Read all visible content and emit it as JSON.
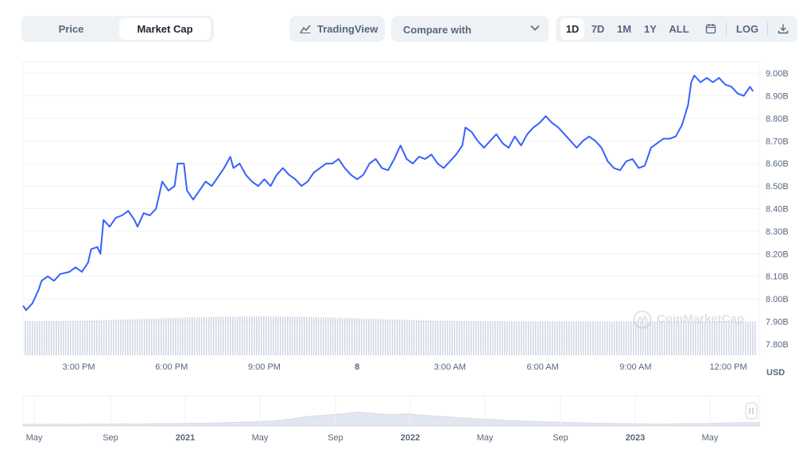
{
  "toolbar": {
    "price_label": "Price",
    "market_cap_label": "Market Cap",
    "active_tab": "Market Cap",
    "tradingview_label": "TradingView",
    "compare_label": "Compare with",
    "ranges": [
      "1D",
      "7D",
      "1M",
      "1Y",
      "ALL"
    ],
    "active_range": "1D",
    "log_label": "LOG"
  },
  "currency_label": "USD",
  "watermark": "CoinMarketCap",
  "colors": {
    "line": "#3861fb",
    "volume": "#cfd6e4",
    "grid": "#eff2f5",
    "navigator": "#e2e6ee"
  },
  "chart_data": {
    "type": "line",
    "title": "",
    "ylabel": "",
    "xlabel": "",
    "ylim": [
      7.75,
      9.05
    ],
    "y_ticks": [
      "9.00B",
      "8.90B",
      "8.80B",
      "8.70B",
      "8.60B",
      "8.50B",
      "8.40B",
      "8.30B",
      "8.20B",
      "8.10B",
      "8.00B",
      "7.90B",
      "7.80B"
    ],
    "y_tick_values": [
      9.0,
      8.9,
      8.8,
      8.7,
      8.6,
      8.5,
      8.4,
      8.3,
      8.2,
      8.1,
      8.0,
      7.9,
      7.8
    ],
    "x_unit": "hours",
    "x_range": [
      0,
      23.8
    ],
    "x_ticks": [
      {
        "label": "3:00 PM",
        "x": 1.8,
        "bold": false
      },
      {
        "label": "6:00 PM",
        "x": 4.8,
        "bold": false
      },
      {
        "label": "9:00 PM",
        "x": 7.8,
        "bold": false
      },
      {
        "label": "8",
        "x": 10.8,
        "bold": true
      },
      {
        "label": "3:00 AM",
        "x": 13.8,
        "bold": false
      },
      {
        "label": "6:00 AM",
        "x": 16.8,
        "bold": false
      },
      {
        "label": "9:00 AM",
        "x": 19.8,
        "bold": false
      },
      {
        "label": "12:00 PM",
        "x": 22.8,
        "bold": false
      }
    ],
    "series": [
      {
        "values": [
          [
            0.0,
            7.97
          ],
          [
            0.1,
            7.95
          ],
          [
            0.3,
            7.98
          ],
          [
            0.5,
            8.04
          ],
          [
            0.6,
            8.08
          ],
          [
            0.8,
            8.1
          ],
          [
            1.0,
            8.08
          ],
          [
            1.2,
            8.11
          ],
          [
            1.5,
            8.12
          ],
          [
            1.7,
            8.14
          ],
          [
            1.9,
            8.12
          ],
          [
            2.1,
            8.16
          ],
          [
            2.2,
            8.22
          ],
          [
            2.4,
            8.23
          ],
          [
            2.5,
            8.2
          ],
          [
            2.6,
            8.35
          ],
          [
            2.8,
            8.32
          ],
          [
            3.0,
            8.36
          ],
          [
            3.2,
            8.37
          ],
          [
            3.4,
            8.39
          ],
          [
            3.6,
            8.35
          ],
          [
            3.7,
            8.32
          ],
          [
            3.9,
            8.38
          ],
          [
            4.1,
            8.37
          ],
          [
            4.3,
            8.4
          ],
          [
            4.5,
            8.52
          ],
          [
            4.7,
            8.48
          ],
          [
            4.9,
            8.5
          ],
          [
            5.0,
            8.6
          ],
          [
            5.2,
            8.6
          ],
          [
            5.3,
            8.48
          ],
          [
            5.5,
            8.44
          ],
          [
            5.7,
            8.48
          ],
          [
            5.9,
            8.52
          ],
          [
            6.1,
            8.5
          ],
          [
            6.3,
            8.54
          ],
          [
            6.5,
            8.58
          ],
          [
            6.7,
            8.63
          ],
          [
            6.8,
            8.58
          ],
          [
            7.0,
            8.6
          ],
          [
            7.2,
            8.55
          ],
          [
            7.4,
            8.52
          ],
          [
            7.6,
            8.5
          ],
          [
            7.8,
            8.53
          ],
          [
            8.0,
            8.5
          ],
          [
            8.2,
            8.55
          ],
          [
            8.4,
            8.58
          ],
          [
            8.6,
            8.55
          ],
          [
            8.8,
            8.53
          ],
          [
            9.0,
            8.5
          ],
          [
            9.2,
            8.52
          ],
          [
            9.4,
            8.56
          ],
          [
            9.6,
            8.58
          ],
          [
            9.8,
            8.6
          ],
          [
            10.0,
            8.6
          ],
          [
            10.2,
            8.62
          ],
          [
            10.4,
            8.58
          ],
          [
            10.6,
            8.55
          ],
          [
            10.8,
            8.53
          ],
          [
            11.0,
            8.55
          ],
          [
            11.2,
            8.6
          ],
          [
            11.4,
            8.62
          ],
          [
            11.6,
            8.58
          ],
          [
            11.8,
            8.57
          ],
          [
            12.0,
            8.62
          ],
          [
            12.2,
            8.68
          ],
          [
            12.4,
            8.62
          ],
          [
            12.6,
            8.6
          ],
          [
            12.8,
            8.63
          ],
          [
            13.0,
            8.62
          ],
          [
            13.2,
            8.64
          ],
          [
            13.4,
            8.6
          ],
          [
            13.6,
            8.58
          ],
          [
            13.8,
            8.61
          ],
          [
            14.0,
            8.64
          ],
          [
            14.2,
            8.68
          ],
          [
            14.3,
            8.76
          ],
          [
            14.5,
            8.74
          ],
          [
            14.7,
            8.7
          ],
          [
            14.9,
            8.67
          ],
          [
            15.1,
            8.7
          ],
          [
            15.3,
            8.73
          ],
          [
            15.5,
            8.69
          ],
          [
            15.7,
            8.67
          ],
          [
            15.9,
            8.72
          ],
          [
            16.1,
            8.68
          ],
          [
            16.3,
            8.73
          ],
          [
            16.5,
            8.76
          ],
          [
            16.7,
            8.78
          ],
          [
            16.9,
            8.81
          ],
          [
            17.1,
            8.78
          ],
          [
            17.3,
            8.76
          ],
          [
            17.5,
            8.73
          ],
          [
            17.7,
            8.7
          ],
          [
            17.9,
            8.67
          ],
          [
            18.1,
            8.7
          ],
          [
            18.3,
            8.72
          ],
          [
            18.5,
            8.7
          ],
          [
            18.7,
            8.67
          ],
          [
            18.9,
            8.61
          ],
          [
            19.1,
            8.58
          ],
          [
            19.3,
            8.57
          ],
          [
            19.5,
            8.61
          ],
          [
            19.7,
            8.62
          ],
          [
            19.9,
            8.58
          ],
          [
            20.1,
            8.59
          ],
          [
            20.3,
            8.67
          ],
          [
            20.5,
            8.69
          ],
          [
            20.7,
            8.71
          ],
          [
            20.9,
            8.71
          ],
          [
            21.1,
            8.72
          ],
          [
            21.3,
            8.77
          ],
          [
            21.5,
            8.86
          ],
          [
            21.6,
            8.96
          ],
          [
            21.7,
            8.99
          ],
          [
            21.9,
            8.96
          ],
          [
            22.1,
            8.98
          ],
          [
            22.3,
            8.96
          ],
          [
            22.5,
            8.98
          ],
          [
            22.7,
            8.95
          ],
          [
            22.9,
            8.94
          ],
          [
            23.1,
            8.91
          ],
          [
            23.3,
            8.9
          ],
          [
            23.5,
            8.94
          ],
          [
            23.6,
            8.92
          ]
        ]
      }
    ],
    "volume_note": "volume bars shown beneath line, no axis",
    "navigator_labels": [
      {
        "label": "May",
        "bold": false
      },
      {
        "label": "Sep",
        "bold": false
      },
      {
        "label": "2021",
        "bold": true
      },
      {
        "label": "May",
        "bold": false
      },
      {
        "label": "Sep",
        "bold": false
      },
      {
        "label": "2022",
        "bold": true
      },
      {
        "label": "May",
        "bold": false
      },
      {
        "label": "Sep",
        "bold": false
      },
      {
        "label": "2023",
        "bold": true
      },
      {
        "label": "May",
        "bold": false
      }
    ],
    "navigator_values": [
      0.1,
      0.1,
      0.11,
      0.1,
      0.12,
      0.12,
      0.13,
      0.12,
      0.14,
      0.14,
      0.16,
      0.17,
      0.19,
      0.22,
      0.25,
      0.3,
      0.4,
      0.55,
      0.62,
      0.7,
      0.8,
      0.72,
      0.65,
      0.7,
      0.62,
      0.55,
      0.48,
      0.42,
      0.38,
      0.32,
      0.28,
      0.25,
      0.22,
      0.2,
      0.17,
      0.15,
      0.14,
      0.13,
      0.12,
      0.13,
      0.14,
      0.15,
      0.18,
      0.2,
      0.2
    ]
  }
}
